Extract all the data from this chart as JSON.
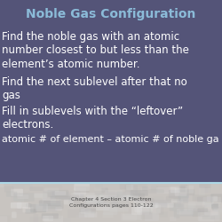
{
  "title": "Noble Gas Configuration",
  "title_color": "#8BBBD8",
  "bg_color": "#545478",
  "body_text_color": "#FFFFFF",
  "bullet_lines": [
    "Find the noble gas with an atomic\nnumber closest to but less than the\nelement’s atomic number.",
    "Find the next sublevel after that no\nble\ngas",
    "Fill in sublevels with the “leftover”\nelectrons.",
    "atomic # of element – atomic # of noble ga"
  ],
  "footer_text": "Chapter 4 Section 3 Electron\nConfigurations pages 110-122",
  "footer_bg": "#C8C4C0",
  "separator_color": "#ADD8E6",
  "title_fontsize": 10,
  "body_fontsize": 8.5,
  "footer_fontsize": 4.5
}
